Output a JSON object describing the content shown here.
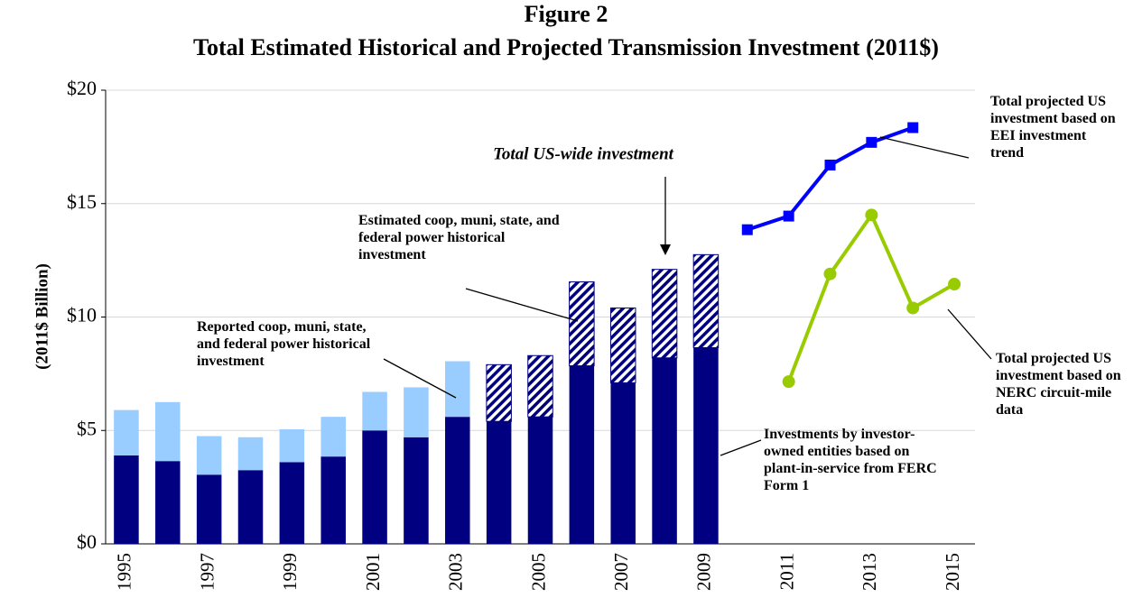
{
  "chart_data": {
    "type": "bar",
    "title": "Figure 2",
    "subtitle": "Total Estimated Historical and Projected Transmission Investment (2011$)",
    "y_label": "(2011$ Billion)",
    "categories": [
      "1995",
      null,
      "1997",
      null,
      "1999",
      null,
      "2001",
      null,
      "2003",
      null,
      "2005",
      null,
      "2007",
      null,
      "2009",
      null,
      "2011",
      null,
      "2013",
      null,
      "2015"
    ],
    "ylim": [
      0,
      20
    ],
    "yticks": [
      {
        "value": 0,
        "label": "$0"
      },
      {
        "value": 5,
        "label": "$5"
      },
      {
        "value": 10,
        "label": "$10"
      },
      {
        "value": 15,
        "label": "$15"
      },
      {
        "value": 20,
        "label": "$20"
      }
    ],
    "grid": true,
    "stacked": true,
    "series": [
      {
        "name": "Investments by investor-owned entities based on plant-in-service from FERC Form 1",
        "type": "bar",
        "color": "#000080",
        "values": [
          3.9,
          3.65,
          3.05,
          3.25,
          3.6,
          3.85,
          5.0,
          4.7,
          5.6,
          5.4,
          5.6,
          7.85,
          7.1,
          8.2,
          8.65,
          null,
          null,
          null,
          null,
          null,
          null
        ]
      },
      {
        "name": "Reported coop, muni, state, and federal power historical investment",
        "type": "bar",
        "color": "#99ccff",
        "values": [
          2.0,
          2.6,
          1.7,
          1.45,
          1.45,
          1.75,
          1.7,
          2.2,
          2.45,
          null,
          null,
          null,
          null,
          null,
          null,
          null,
          null,
          null,
          null,
          null,
          null
        ]
      },
      {
        "name": "Estimated coop, muni, state, and federal power historical investment",
        "type": "bar",
        "color": "#000080",
        "pattern": "hatch",
        "values": [
          null,
          null,
          null,
          null,
          null,
          null,
          null,
          null,
          null,
          2.5,
          2.7,
          3.7,
          3.3,
          3.9,
          4.1,
          null,
          null,
          null,
          null,
          null,
          null
        ]
      },
      {
        "name": "Total projected US investment based on EEI investment trend",
        "type": "line",
        "color": "#0000ff",
        "marker": "square",
        "values": [
          null,
          null,
          null,
          null,
          null,
          null,
          null,
          null,
          null,
          null,
          null,
          null,
          null,
          null,
          null,
          13.85,
          14.45,
          16.7,
          17.7,
          18.35,
          null
        ]
      },
      {
        "name": "Total projected US investment based on NERC circuit-mile data",
        "type": "line",
        "color": "#99cc00",
        "marker": "circle",
        "values": [
          null,
          null,
          null,
          null,
          null,
          null,
          null,
          null,
          null,
          null,
          null,
          null,
          null,
          null,
          null,
          null,
          7.15,
          11.9,
          14.5,
          10.4,
          11.45
        ]
      }
    ],
    "annotations": [
      "Total US-wide investment"
    ]
  }
}
